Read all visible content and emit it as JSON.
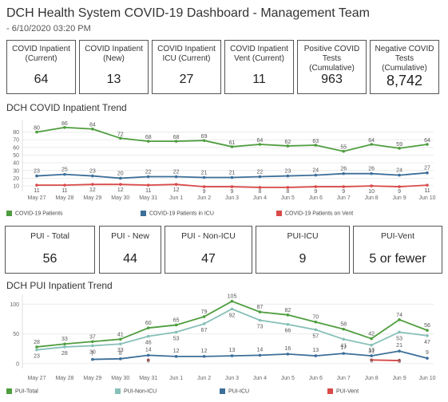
{
  "header": {
    "title": "DCH Health System COVID-19 Dashboard - Management Team",
    "subtitle": "- 6/10/2020 03:20 PM"
  },
  "kpis_top": [
    {
      "label": "COVID Inpatient (Current)",
      "value": "64"
    },
    {
      "label": "COVID Inpatient (New)",
      "value": "13"
    },
    {
      "label": "COVID Inpatient ICU (Current)",
      "value": "27"
    },
    {
      "label": "COVID Inpatient Vent (Current)",
      "value": "11"
    },
    {
      "label": "Positive COVID Tests (Cumulative)",
      "value": "963"
    },
    {
      "label": "Negative COVID Tests (Cumulative)",
      "value": "8,742"
    }
  ],
  "kpis_pui": [
    {
      "label": "PUI - Total",
      "value": "56"
    },
    {
      "label": "PUI - New",
      "value": "44"
    },
    {
      "label": "PUI - Non-ICU",
      "value": "47"
    },
    {
      "label": "PUI-ICU",
      "value": "9"
    },
    {
      "label": "PUI-Vent",
      "value": "5 or fewer"
    }
  ],
  "chart_data": [
    {
      "type": "line",
      "title": "DCH COVID Inpatient Trend",
      "categories": [
        "May 27",
        "May 28",
        "May 29",
        "May 30",
        "May 31",
        "Jun 1",
        "Jun 2",
        "Jun 3",
        "Jun 4",
        "Jun 5",
        "Jun 6",
        "Jun 7",
        "Jun 8",
        "Jun 9",
        "Jun 10"
      ],
      "y_ticks": [
        10,
        20,
        30,
        40,
        50,
        60,
        70,
        80
      ],
      "ylim": [
        7,
        92
      ],
      "legend_position": "bottom",
      "series": [
        {
          "name": "COVID-19 Patients",
          "color": "#4e9d3e",
          "values": [
            80,
            86,
            84,
            72,
            68,
            68,
            69,
            61,
            64,
            62,
            63,
            55,
            64,
            59,
            64
          ]
        },
        {
          "name": "COVID-19 Patients in ICU",
          "color": "#3c6e99",
          "values": [
            23,
            25,
            23,
            20,
            22,
            22,
            21,
            21,
            22,
            23,
            24,
            26,
            26,
            24,
            27
          ]
        },
        {
          "name": "COVID-19 Patients on Vent",
          "color": "#d94a49",
          "values": [
            11,
            11,
            12,
            12,
            11,
            12,
            9,
            9,
            8,
            8,
            9,
            9,
            10,
            9,
            11
          ]
        }
      ]
    },
    {
      "type": "line",
      "title": "DCH PUI Inpatient Trend",
      "categories": [
        "May 27",
        "May 28",
        "May 29",
        "May 30",
        "May 31",
        "Jun 1",
        "Jun 2",
        "Jun 3",
        "Jun 4",
        "Jun 5",
        "Jun 6",
        "Jun 7",
        "Jun 8",
        "Jun 9",
        "Jun 10"
      ],
      "y_ticks": [
        0,
        50,
        100
      ],
      "ylim": [
        -3,
        110
      ],
      "legend_position": "bottom",
      "series": [
        {
          "name": "PUI-Total",
          "color": "#4e9d3e",
          "values": [
            28,
            33,
            37,
            41,
            60,
            65,
            79,
            105,
            87,
            82,
            70,
            58,
            42,
            74,
            56
          ]
        },
        {
          "name": "PUI-Non-ICU",
          "color": "#86c0b8",
          "values": [
            23,
            28,
            30,
            33,
            46,
            53,
            67,
            92,
            73,
            66,
            57,
            41,
            31,
            53,
            47
          ]
        },
        {
          "name": "PUI-ICU",
          "color": "#3c6e99",
          "values": [
            null,
            null,
            7,
            8,
            14,
            12,
            12,
            13,
            14,
            16,
            13,
            17,
            13,
            21,
            9
          ]
        },
        {
          "name": "PUI-Vent",
          "color": "#d94a49",
          "values": [
            null,
            null,
            null,
            null,
            6,
            null,
            null,
            null,
            null,
            null,
            null,
            null,
            6,
            5,
            null
          ]
        }
      ]
    }
  ]
}
